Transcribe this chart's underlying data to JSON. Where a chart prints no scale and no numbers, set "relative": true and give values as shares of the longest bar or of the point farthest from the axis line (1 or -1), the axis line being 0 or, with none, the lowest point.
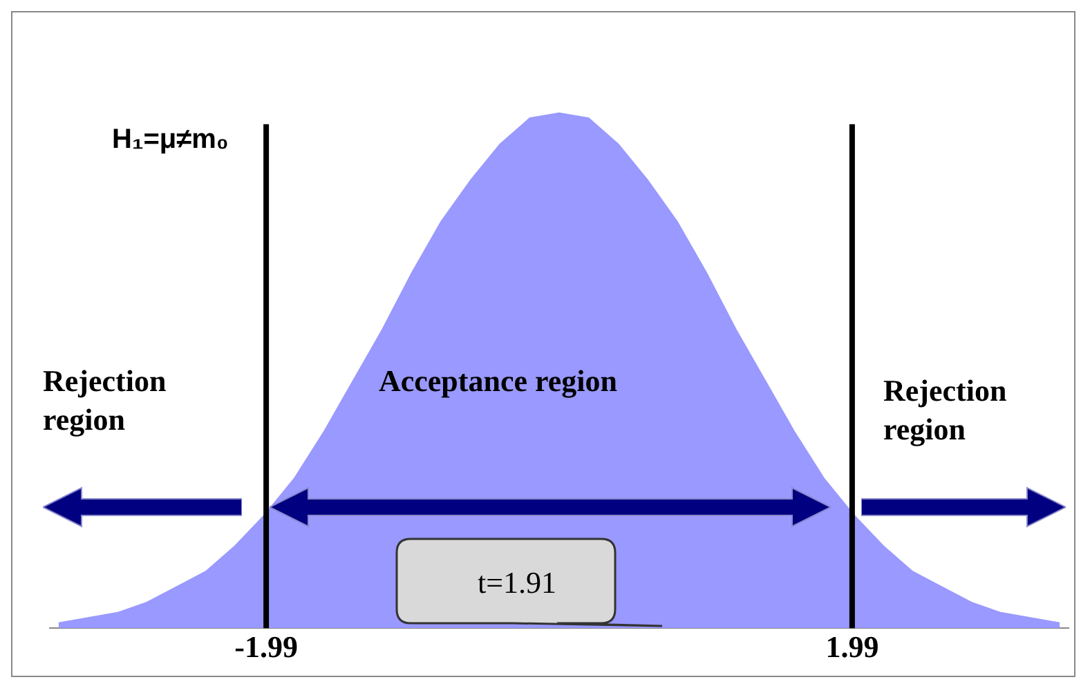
{
  "chart_data": {
    "type": "area",
    "relative": true,
    "tick_labels": "x",
    "legend": false,
    "marker": "none",
    "xlim": [
      -3.46,
      3.46
    ],
    "xticks": [
      {
        "value": -1.99,
        "label": "-1.99"
      },
      {
        "value": 1.99,
        "label": "1.99"
      }
    ],
    "x": [
      -3.4,
      -3.2,
      -3.0,
      -2.8,
      -2.6,
      -2.4,
      -2.2,
      -2.0,
      -1.8,
      -1.6,
      -1.4,
      -1.2,
      -1.0,
      -0.8,
      -0.6,
      -0.4,
      -0.2,
      0,
      0.2,
      0.4,
      0.6,
      0.8,
      1.0,
      1.2,
      1.4,
      1.6,
      1.8,
      2.0,
      2.2,
      2.4,
      2.6,
      2.8,
      3.0,
      3.2,
      3.4
    ],
    "series": [
      {
        "color": "#9999ff",
        "values": [
          0.01,
          0.02,
          0.03,
          0.05,
          0.08,
          0.11,
          0.16,
          0.22,
          0.29,
          0.38,
          0.48,
          0.58,
          0.69,
          0.79,
          0.87,
          0.94,
          0.99,
          1,
          0.99,
          0.94,
          0.87,
          0.79,
          0.69,
          0.58,
          0.48,
          0.38,
          0.29,
          0.22,
          0.16,
          0.11,
          0.08,
          0.05,
          0.03,
          0.02,
          0.01
        ]
      }
    ],
    "ref_lines": [
      {
        "axis": "x",
        "value": -1.99,
        "color": "#000000"
      },
      {
        "axis": "x",
        "value": 1.99,
        "color": "#000000"
      }
    ],
    "annotations": [
      "H₁=μ≠m₀",
      "Rejection region",
      "Acceptance region",
      "Rejection region",
      "t=1.91"
    ]
  }
}
